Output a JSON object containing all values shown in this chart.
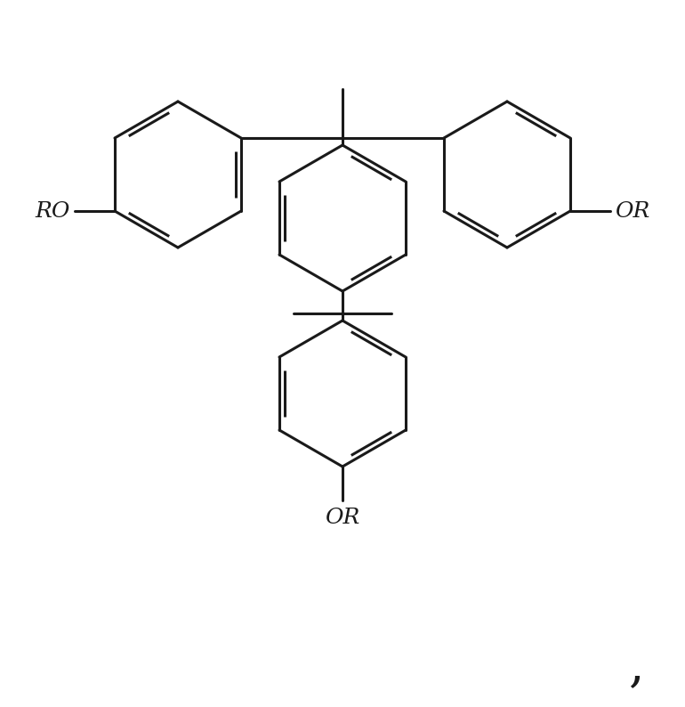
{
  "line_color": "#1a1a1a",
  "line_width": 2.2,
  "bg_color": "#ffffff",
  "figsize": [
    7.7,
    7.94
  ],
  "dpi": 100,
  "comma_text": ",",
  "comma_fontsize": 40,
  "label_fontsize": 18,
  "RO_left_text": "RO",
  "OR_right_text": "OR",
  "OR_bottom_text": "OR"
}
